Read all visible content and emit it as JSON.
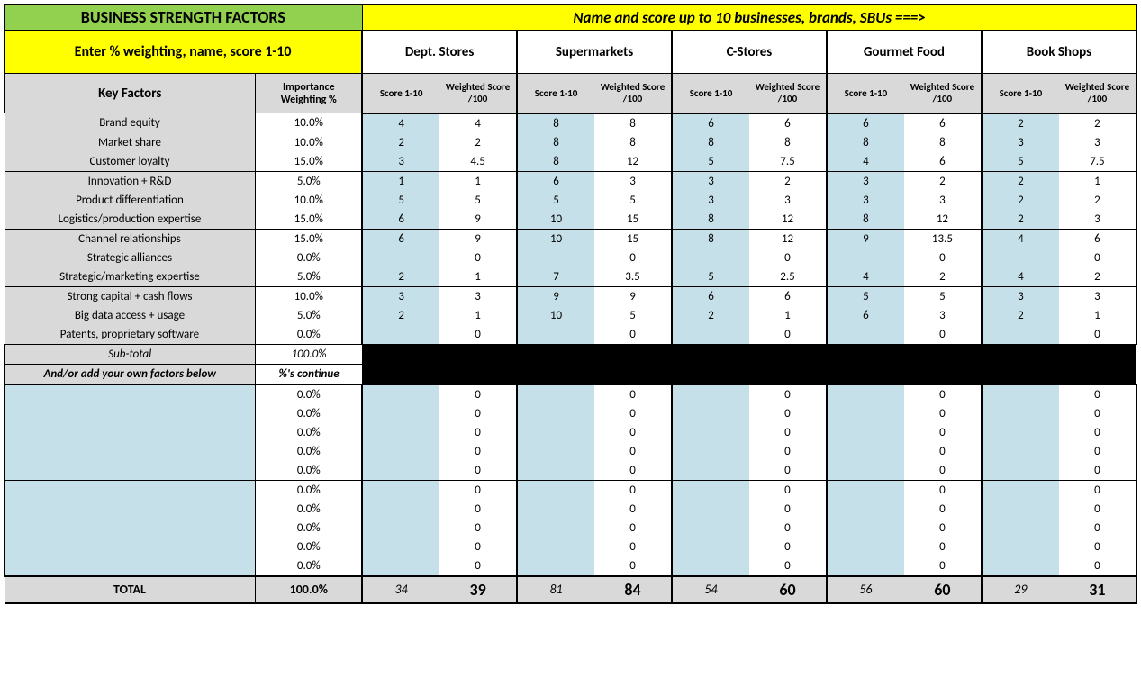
{
  "header": {
    "title": "BUSINESS STRENGTH FACTORS",
    "right": "Name and score up to 10 businesses, brands, SBUs ===>",
    "instr": "Enter % weighting, name, score 1-10"
  },
  "col": {
    "key": "Key Factors",
    "weight": "Importance Weighting %",
    "score": "Score 1-10",
    "wscore": "Weighted Score /100"
  },
  "biz": [
    "Dept. Stores",
    "Supermarkets",
    "C-Stores",
    "Gourmet Food",
    "Book Shops"
  ],
  "factors": [
    {
      "name": "Brand equity",
      "w": "10.0%",
      "s": [
        "4",
        "8",
        "6",
        "6",
        "2"
      ],
      "ws": [
        "4",
        "8",
        "6",
        "6",
        "2"
      ]
    },
    {
      "name": "Market share",
      "w": "10.0%",
      "s": [
        "2",
        "8",
        "8",
        "8",
        "3"
      ],
      "ws": [
        "2",
        "8",
        "8",
        "8",
        "3"
      ]
    },
    {
      "name": "Customer loyalty",
      "w": "15.0%",
      "s": [
        "3",
        "8",
        "5",
        "4",
        "5"
      ],
      "ws": [
        "4.5",
        "12",
        "7.5",
        "6",
        "7.5"
      ]
    },
    {
      "name": "Innovation + R&D",
      "w": "5.0%",
      "s": [
        "1",
        "6",
        "3",
        "3",
        "2"
      ],
      "ws": [
        "1",
        "3",
        "2",
        "2",
        "1"
      ]
    },
    {
      "name": "Product differentiation",
      "w": "10.0%",
      "s": [
        "5",
        "5",
        "3",
        "3",
        "2"
      ],
      "ws": [
        "5",
        "5",
        "3",
        "3",
        "2"
      ]
    },
    {
      "name": "Logistics/production expertise",
      "w": "15.0%",
      "s": [
        "6",
        "10",
        "8",
        "8",
        "2"
      ],
      "ws": [
        "9",
        "15",
        "12",
        "12",
        "3"
      ]
    },
    {
      "name": "Channel relationships",
      "w": "15.0%",
      "s": [
        "6",
        "10",
        "8",
        "9",
        "4"
      ],
      "ws": [
        "9",
        "15",
        "12",
        "13.5",
        "6"
      ]
    },
    {
      "name": "Strategic alliances",
      "w": "0.0%",
      "s": [
        "",
        "",
        "",
        "",
        ""
      ],
      "ws": [
        "0",
        "0",
        "0",
        "0",
        "0"
      ]
    },
    {
      "name": "Strategic/marketing expertise",
      "w": "5.0%",
      "s": [
        "2",
        "7",
        "5",
        "4",
        "4"
      ],
      "ws": [
        "1",
        "3.5",
        "2.5",
        "2",
        "2"
      ]
    },
    {
      "name": "Strong capital + cash flows",
      "w": "10.0%",
      "s": [
        "3",
        "9",
        "6",
        "5",
        "3"
      ],
      "ws": [
        "3",
        "9",
        "6",
        "5",
        "3"
      ]
    },
    {
      "name": "Big data access + usage",
      "w": "5.0%",
      "s": [
        "2",
        "10",
        "2",
        "6",
        "2"
      ],
      "ws": [
        "1",
        "5",
        "1",
        "3",
        "1"
      ]
    },
    {
      "name": "Patents, proprietary software",
      "w": "0.0%",
      "s": [
        "",
        "",
        "",
        "",
        ""
      ],
      "ws": [
        "0",
        "0",
        "0",
        "0",
        "0"
      ]
    }
  ],
  "groupStarts": [
    0,
    3,
    6,
    9
  ],
  "subtotal": {
    "label": "Sub-total",
    "val": "100.0%"
  },
  "addown": {
    "label": "And/or add your own factors below",
    "val": "%'s continue"
  },
  "custom": [
    {
      "w": "0.0%",
      "ws": [
        "0",
        "0",
        "0",
        "0",
        "0"
      ]
    },
    {
      "w": "0.0%",
      "ws": [
        "0",
        "0",
        "0",
        "0",
        "0"
      ]
    },
    {
      "w": "0.0%",
      "ws": [
        "0",
        "0",
        "0",
        "0",
        "0"
      ]
    },
    {
      "w": "0.0%",
      "ws": [
        "0",
        "0",
        "0",
        "0",
        "0"
      ]
    },
    {
      "w": "0.0%",
      "ws": [
        "0",
        "0",
        "0",
        "0",
        "0"
      ]
    },
    {
      "w": "0.0%",
      "ws": [
        "0",
        "0",
        "0",
        "0",
        "0"
      ]
    },
    {
      "w": "0.0%",
      "ws": [
        "0",
        "0",
        "0",
        "0",
        "0"
      ]
    },
    {
      "w": "0.0%",
      "ws": [
        "0",
        "0",
        "0",
        "0",
        "0"
      ]
    },
    {
      "w": "0.0%",
      "ws": [
        "0",
        "0",
        "0",
        "0",
        "0"
      ]
    },
    {
      "w": "0.0%",
      "ws": [
        "0",
        "0",
        "0",
        "0",
        "0"
      ]
    }
  ],
  "customGroupStarts": [
    0,
    5
  ],
  "total": {
    "label": "TOTAL",
    "w": "100.0%",
    "s": [
      "34",
      "81",
      "54",
      "56",
      "29"
    ],
    "ws": [
      "39",
      "84",
      "60",
      "60",
      "31"
    ]
  },
  "colors": {
    "green": "#92d050",
    "yellow": "#ffff00",
    "grey": "#d9d9d9",
    "blue": "#c5e0e8"
  }
}
